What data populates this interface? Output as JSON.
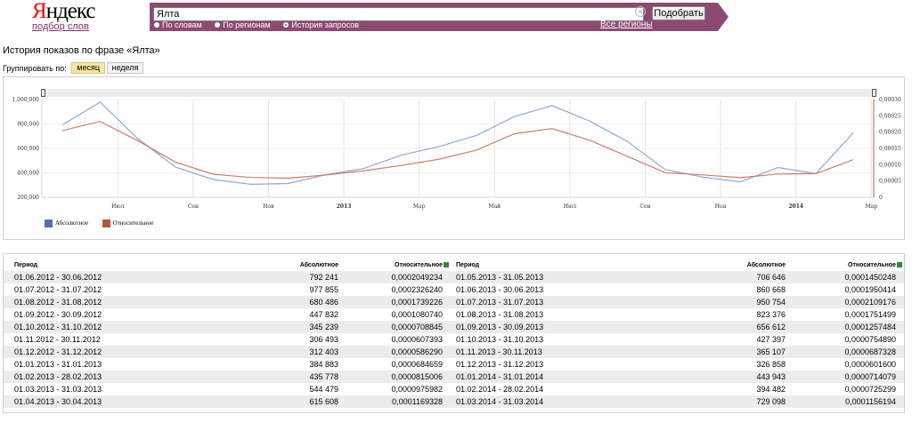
{
  "header": {
    "logo_y": "Я",
    "logo_rest": "ндекс",
    "logo_sub": "подбор слов",
    "search_value": "Ялта",
    "submit_label": "Подобрать",
    "modes": [
      "По словам",
      "По регионам",
      "История запросов"
    ],
    "regions_link": "Все регионы",
    "colors": {
      "bar": "#8c4a73",
      "accent": "#ff0000"
    },
    "icons": {
      "clear": "clear-icon"
    }
  },
  "page": {
    "title": "История показов по фразе «Ялта»",
    "group_label": "Группировать по:",
    "group_options": [
      "месяц",
      "неделя"
    ]
  },
  "chart_data": {
    "type": "line",
    "x": [
      "2012-06",
      "2012-07",
      "2012-08",
      "2012-09",
      "2012-10",
      "2012-11",
      "2012-12",
      "2013-01",
      "2013-02",
      "2013-03",
      "2013-04",
      "2013-05",
      "2013-06",
      "2013-07",
      "2013-08",
      "2013-09",
      "2013-10",
      "2013-11",
      "2013-12",
      "2014-01",
      "2014-02",
      "2014-03"
    ],
    "x_tick_labels": [
      "Июл",
      "Сен",
      "Ноя",
      "2013",
      "Мар",
      "Май",
      "Июл",
      "Сен",
      "Ноя",
      "2014",
      "Мар"
    ],
    "y_left_ticks": [
      "200,000",
      "400,000",
      "600,000",
      "800,000",
      "1,000,000"
    ],
    "y_right_ticks": [
      "0",
      "0,00005",
      "0,00010",
      "0,00015",
      "0,00020",
      "0,00025",
      "0,00030"
    ],
    "y_left_range": [
      200000,
      1000000
    ],
    "y_right_range": [
      0,
      0.0003
    ],
    "grid": true,
    "legend_position": "bottom-left",
    "series": [
      {
        "name": "Абсолютное",
        "axis": "left",
        "color": "#8fa8d8",
        "legend_color": "#4f6fb5",
        "values": [
          792241,
          977855,
          680486,
          447832,
          345239,
          306493,
          312403,
          384883,
          435778,
          544479,
          615608,
          706646,
          860668,
          950754,
          823376,
          656612,
          427397,
          365107,
          326858,
          443943,
          394482,
          729098
        ]
      },
      {
        "name": "Относительное",
        "axis": "right",
        "color": "#c97e6b",
        "legend_color": "#b5553c",
        "values": [
          0.0002049234,
          0.000232624,
          0.0001739226,
          0.000108074,
          7.08845e-05,
          6.07393e-05,
          5.8629e-05,
          6.84659e-05,
          8.15006e-05,
          9.75982e-05,
          0.0001169328,
          0.0001450248,
          0.0001950414,
          0.0002109176,
          0.0001751499,
          0.0001257484,
          7.5489e-05,
          6.87328e-05,
          6.016e-05,
          7.14079e-05,
          7.25299e-05,
          0.0001156194
        ]
      }
    ]
  },
  "table": {
    "headers": {
      "period": "Период",
      "absolute": "Абсолютное",
      "relative": "Относительное"
    },
    "left": [
      {
        "period": "01.06.2012 - 30.06.2012",
        "absolute": "792 241",
        "relative": "0,0002049234"
      },
      {
        "period": "01.07.2012 - 31.07.2012",
        "absolute": "977 855",
        "relative": "0,0002326240"
      },
      {
        "period": "01.08.2012 - 31.08.2012",
        "absolute": "680 486",
        "relative": "0,0001739226"
      },
      {
        "period": "01.09.2012 - 30.09.2012",
        "absolute": "447 832",
        "relative": "0,0001080740"
      },
      {
        "period": "01.10.2012 - 31.10.2012",
        "absolute": "345 239",
        "relative": "0,0000708845"
      },
      {
        "period": "01.11.2012 - 30.11.2012",
        "absolute": "306 493",
        "relative": "0,0000607393"
      },
      {
        "period": "01.12.2012 - 31.12.2012",
        "absolute": "312 403",
        "relative": "0,0000586290"
      },
      {
        "period": "01.01.2013 - 31.01.2013",
        "absolute": "384 883",
        "relative": "0,0000684659"
      },
      {
        "period": "01.02.2013 - 28.02.2013",
        "absolute": "435 778",
        "relative": "0,0000815006"
      },
      {
        "period": "01.03.2013 - 31.03.2013",
        "absolute": "544 479",
        "relative": "0,0000975982"
      },
      {
        "period": "01.04.2013 - 30.04.2013",
        "absolute": "615 608",
        "relative": "0,0001169328"
      }
    ],
    "right": [
      {
        "period": "01.05.2013 - 31.05.2013",
        "absolute": "706 646",
        "relative": "0,0001450248"
      },
      {
        "period": "01.06.2013 - 30.06.2013",
        "absolute": "860 668",
        "relative": "0,0001950414"
      },
      {
        "period": "01.07.2013 - 31.07.2013",
        "absolute": "950 754",
        "relative": "0,0002109176"
      },
      {
        "period": "01.08.2013 - 31.08.2013",
        "absolute": "823 376",
        "relative": "0,0001751499"
      },
      {
        "period": "01.09.2013 - 30.09.2013",
        "absolute": "656 612",
        "relative": "0,0001257484"
      },
      {
        "period": "01.10.2013 - 31.10.2013",
        "absolute": "427 397",
        "relative": "0,0000754890"
      },
      {
        "period": "01.11.2013 - 30.11.2013",
        "absolute": "365 107",
        "relative": "0,0000687328"
      },
      {
        "period": "01.12.2013 - 31.12.2013",
        "absolute": "326 858",
        "relative": "0,0000601600"
      },
      {
        "period": "01.01.2014 - 31.01.2014",
        "absolute": "443 943",
        "relative": "0,0000714079"
      },
      {
        "period": "01.02.2014 - 28.02.2014",
        "absolute": "394 482",
        "relative": "0,0000725299"
      },
      {
        "period": "01.03.2014 - 31.03.2014",
        "absolute": "729 098",
        "relative": "0,0001156194"
      }
    ]
  }
}
